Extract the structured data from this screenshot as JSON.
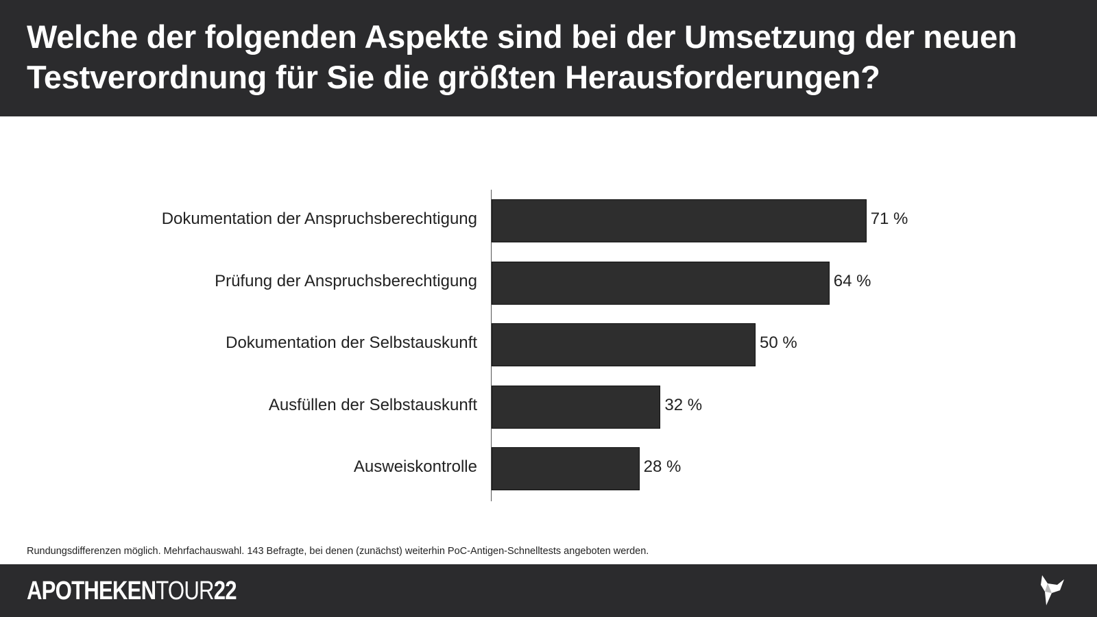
{
  "header": {
    "title": "Welche der folgenden Aspekte sind bei der Umsetzung der neuen Testverordnung für Sie die größten Herausforderungen?"
  },
  "chart_data": {
    "type": "bar",
    "orientation": "horizontal",
    "title": "Welche der folgenden Aspekte sind bei der Umsetzung der neuen Testverordnung für Sie die größten Herausforderungen?",
    "categories": [
      "Dokumentation der Anspruchsberechtigung",
      "Prüfung der Anspruchsberechtigung",
      "Dokumentation der Selbstauskunft",
      "Ausfüllen der Selbstauskunft",
      "Ausweiskontrolle"
    ],
    "values": [
      71,
      64,
      50,
      32,
      28
    ],
    "value_labels": [
      "71 %",
      "64 %",
      "50 %",
      "32 %",
      "28 %"
    ],
    "unit": "%",
    "xlim": [
      0,
      100
    ],
    "grid": false,
    "bar_color": "#2e2e2e"
  },
  "footnote": "Rundungsdifferenzen möglich. Mehrfachauswahl. 143 Befragte, bei denen (zunächst) weiterhin PoC-Antigen-Schnelltests angeboten werden.",
  "footer": {
    "logo_bold": "APOTHEKEN",
    "logo_thin": "TOUR",
    "logo_num": "22",
    "icon": "origami-bird-icon"
  }
}
